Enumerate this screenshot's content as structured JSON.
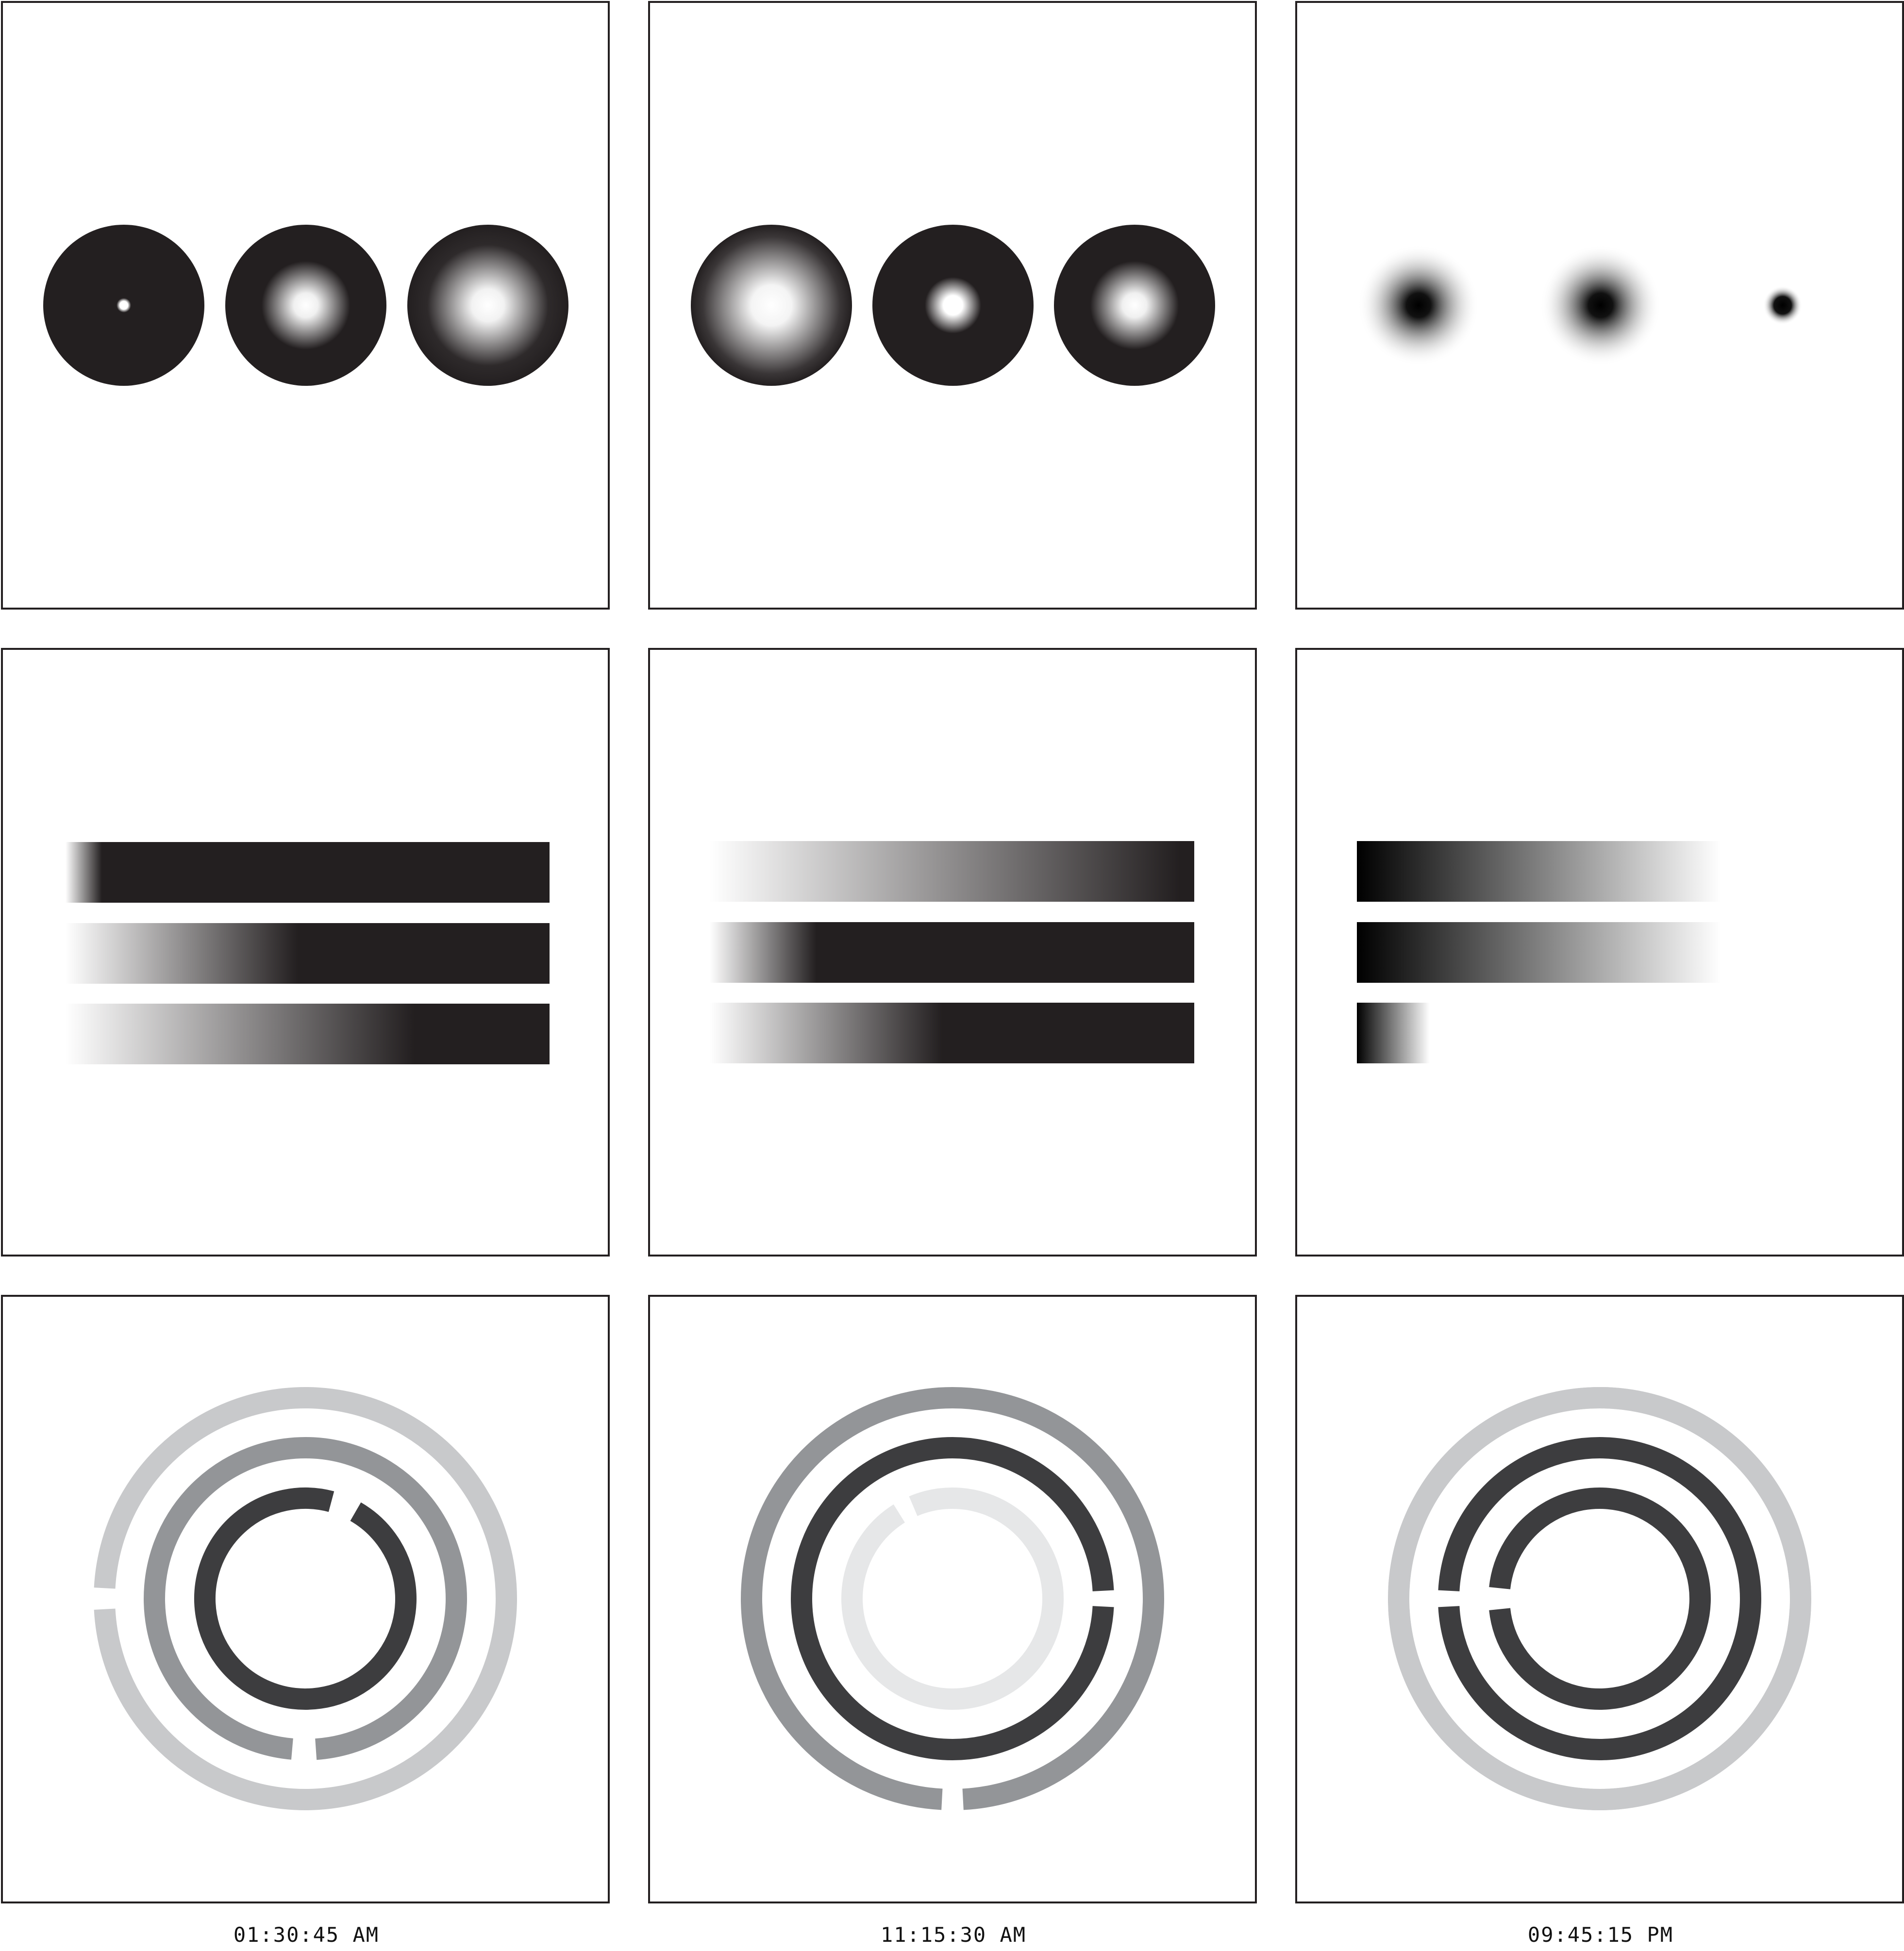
{
  "clocks": [
    {
      "time_label": "01:30:45 AM",
      "hours_panel": {
        "description": "three dark discs, bright glow size encodes hour digits"
      },
      "minutes_panel": {
        "description": "three horizontal bars with fading left ends"
      },
      "seconds_panel": {
        "description": "three concentric broken rings"
      }
    },
    {
      "time_label": "11:15:30 AM"
    },
    {
      "time_label": "09:45:15 PM"
    }
  ],
  "colors": {
    "background": "#ffffff",
    "panel_border": "#231f20",
    "disc_dark": "#231f20",
    "glow_light": "#ffffff",
    "bar_dark": "#231f20",
    "bar_black": "#000000",
    "ring_light": "#c8c9cb",
    "ring_mid": "#939598",
    "ring_dark": "#636466",
    "ring_darker": "#3d3d3f",
    "ring_faint": "#e6e7e8"
  }
}
